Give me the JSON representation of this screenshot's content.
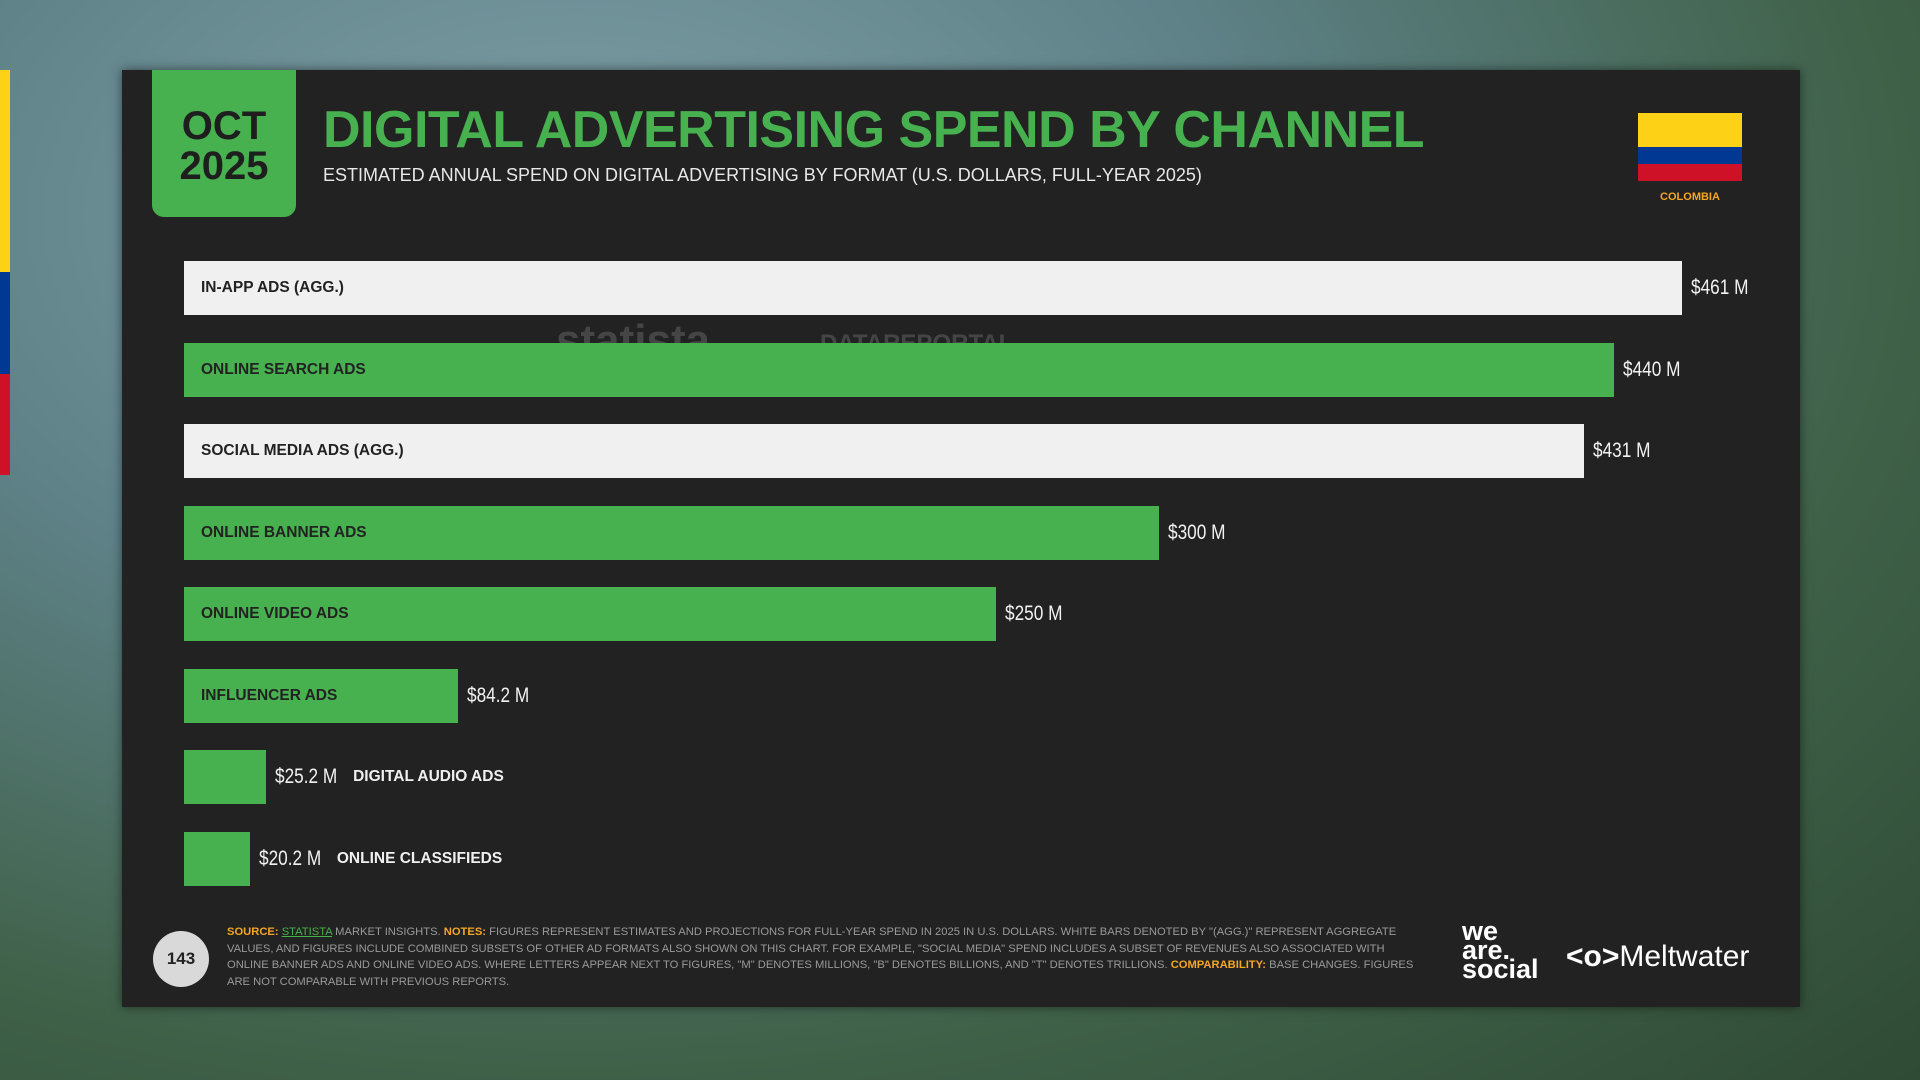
{
  "chart_data": {
    "type": "bar",
    "date_month": "OCT",
    "date_year": "2025",
    "title": "DIGITAL ADVERTISING SPEND BY CHANNEL",
    "subtitle": "ESTIMATED ANNUAL SPEND ON DIGITAL ADVERTISING BY FORMAT (U.S. DOLLARS, FULL-YEAR 2025)",
    "country": "COLOMBIA",
    "categories": [
      "IN-APP ADS (AGG.)",
      "ONLINE SEARCH ADS",
      "SOCIAL MEDIA ADS (AGG.)",
      "ONLINE BANNER ADS",
      "ONLINE VIDEO ADS",
      "INFLUENCER ADS",
      "DIGITAL AUDIO ADS",
      "ONLINE CLASSIFIEDS"
    ],
    "values": [
      461,
      440,
      431,
      300,
      250,
      84.2,
      25.2,
      20.2
    ],
    "value_labels": [
      "$461 M",
      "$440 M",
      "$431 M",
      "$300 M",
      "$250 M",
      "$84.2 M",
      "$25.2 M",
      "$20.2 M"
    ],
    "colors": [
      "#f0f0f0",
      "#47b04f",
      "#f0f0f0",
      "#47b04f",
      "#47b04f",
      "#47b04f",
      "#47b04f",
      "#47b04f"
    ],
    "watermarks": [
      "statista",
      "DATAREPORTAL"
    ]
  },
  "footer": {
    "page_number": "143",
    "source_label": "SOURCE:",
    "source_link": "STATISTA",
    "source_text": " MARKET INSIGHTS. ",
    "notes_label": "NOTES:",
    "notes_text": " FIGURES REPRESENT ESTIMATES AND PROJECTIONS FOR FULL-YEAR SPEND IN 2025 IN U.S. DOLLARS. WHITE BARS DENOTED BY \"(AGG.)\" REPRESENT AGGREGATE VALUES, AND FIGURES INCLUDE COMBINED SUBSETS OF OTHER AD FORMATS ALSO SHOWN ON THIS CHART. FOR EXAMPLE, \"SOCIAL MEDIA\" SPEND INCLUDES A SUBSET OF REVENUES ALSO ASSOCIATED WITH ONLINE BANNER ADS AND ONLINE VIDEO ADS. WHERE LETTERS APPEAR NEXT TO FIGURES, \"M\" DENOTES MILLIONS, \"B\" DENOTES BILLIONS, AND \"T\" DENOTES TRILLIONS. ",
    "comparability_label": "COMPARABILITY:",
    "comparability_text": " BASE CHANGES. FIGURES ARE NOT COMPARABLE WITH PREVIOUS REPORTS.",
    "logo_1": [
      "we",
      "are.",
      "social"
    ],
    "logo_2": "Meltwater"
  }
}
